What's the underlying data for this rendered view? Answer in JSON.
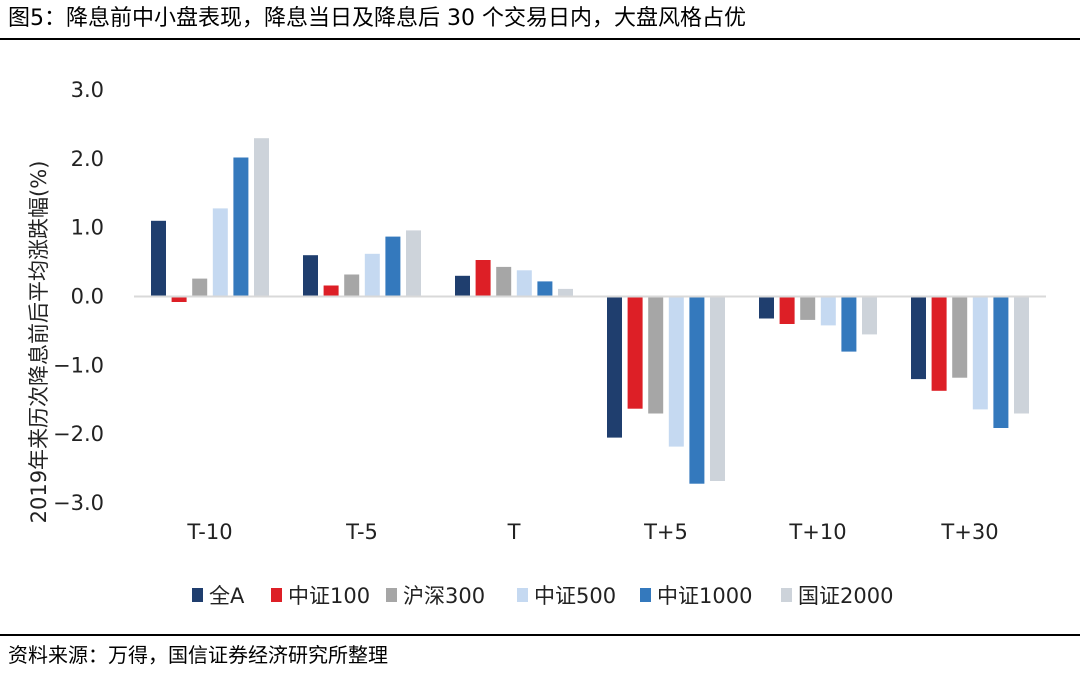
{
  "header": {
    "title": "图5：降息前中小盘表现，降息当日及降息后 30 个交易日内，大盘风格占优"
  },
  "footer": {
    "source": "资料来源：万得，国信证券经济研究所整理"
  },
  "chart_data": {
    "type": "bar",
    "title": "图5：降息前中小盘表现，降息当日及降息后 30 个交易日内，大盘风格占优",
    "xlabel": "",
    "ylabel": "2019年来历次降息前后平均涨跌幅(%)",
    "ylim": [
      -3.0,
      3.0
    ],
    "yticks": [
      3.0,
      2.0,
      1.0,
      0.0,
      -1.0,
      -2.0,
      -3.0
    ],
    "ytick_labels": [
      "3.0",
      "2.0",
      "1.0",
      "0.0",
      "−1.0",
      "−2.0",
      "−3.0"
    ],
    "grid": false,
    "legend_position": "bottom",
    "categories": [
      "T-10",
      "T-5",
      "T",
      "T+5",
      "T+10",
      "T+30"
    ],
    "series": [
      {
        "name": "全A",
        "color": "#1f3e6e",
        "values": [
          1.1,
          0.6,
          0.3,
          -2.05,
          -0.32,
          -1.2
        ]
      },
      {
        "name": "中证100",
        "color": "#dd1f26",
        "values": [
          -0.08,
          0.16,
          0.53,
          -1.63,
          -0.4,
          -1.37
        ]
      },
      {
        "name": "沪深300",
        "color": "#a6a6a6",
        "values": [
          0.26,
          0.32,
          0.43,
          -1.7,
          -0.34,
          -1.18
        ]
      },
      {
        "name": "中证500",
        "color": "#c5d9f1",
        "values": [
          1.28,
          0.62,
          0.38,
          -2.18,
          -0.42,
          -1.64
        ]
      },
      {
        "name": "中证1000",
        "color": "#3479bd",
        "values": [
          2.02,
          0.87,
          0.22,
          -2.72,
          -0.8,
          -1.91
        ]
      },
      {
        "name": "国证2000",
        "color": "#cdd3da",
        "values": [
          2.3,
          0.96,
          0.11,
          -2.68,
          -0.55,
          -1.7
        ]
      }
    ]
  }
}
